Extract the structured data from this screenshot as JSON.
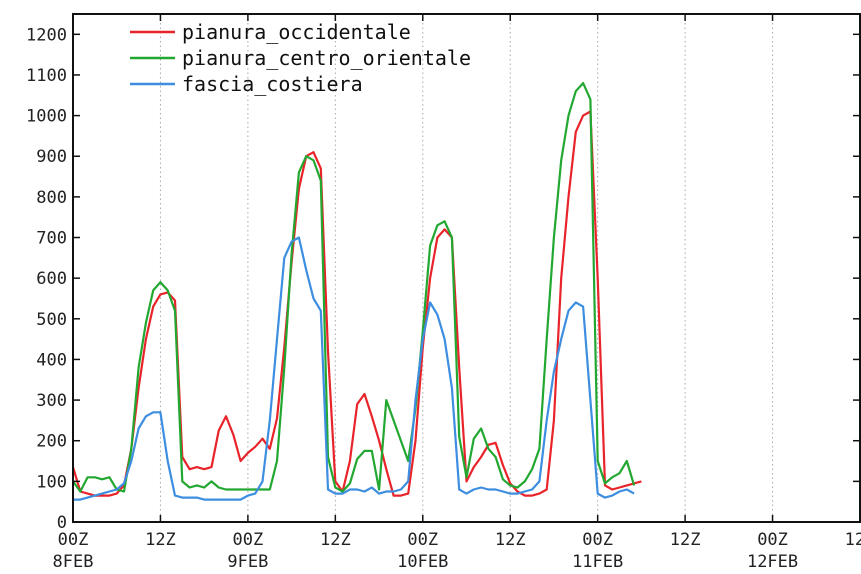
{
  "chart_data": {
    "type": "line",
    "title": "",
    "xlabel": "",
    "ylabel": "",
    "ylim": [
      0,
      1250
    ],
    "xlim": [
      0,
      108
    ],
    "x_unit": "hours from 00Z 8FEB",
    "grid": "vertical dotted lines at 12-hour intervals",
    "legend_position": "top-left",
    "yticks": [
      0,
      100,
      200,
      300,
      400,
      500,
      600,
      700,
      800,
      900,
      1000,
      1100,
      1200
    ],
    "xticks": [
      {
        "x": 0,
        "line1": "00Z",
        "line2": "8FEB"
      },
      {
        "x": 12,
        "line1": "12Z",
        "line2": ""
      },
      {
        "x": 24,
        "line1": "00Z",
        "line2": "9FEB"
      },
      {
        "x": 36,
        "line1": "12Z",
        "line2": ""
      },
      {
        "x": 48,
        "line1": "00Z",
        "line2": "10FEB"
      },
      {
        "x": 60,
        "line1": "12Z",
        "line2": ""
      },
      {
        "x": 72,
        "line1": "00Z",
        "line2": "11FEB"
      },
      {
        "x": 84,
        "line1": "12Z",
        "line2": ""
      },
      {
        "x": 96,
        "line1": "00Z",
        "line2": "12FEB"
      },
      {
        "x": 108,
        "line1": "12Z",
        "line2": ""
      }
    ],
    "series": [
      {
        "name": "pianura_occidentale",
        "color": "#e8242a",
        "points": [
          [
            0,
            135
          ],
          [
            1,
            75
          ],
          [
            2,
            70
          ],
          [
            3,
            65
          ],
          [
            4,
            65
          ],
          [
            5,
            65
          ],
          [
            6,
            70
          ],
          [
            7,
            90
          ],
          [
            8,
            180
          ],
          [
            9,
            330
          ],
          [
            10,
            450
          ],
          [
            11,
            530
          ],
          [
            12,
            560
          ],
          [
            13,
            565
          ],
          [
            14,
            545
          ],
          [
            15,
            160
          ],
          [
            16,
            130
          ],
          [
            17,
            135
          ],
          [
            18,
            130
          ],
          [
            19,
            135
          ],
          [
            20,
            225
          ],
          [
            21,
            260
          ],
          [
            22,
            215
          ],
          [
            23,
            150
          ],
          [
            24,
            170
          ],
          [
            25,
            185
          ],
          [
            26,
            205
          ],
          [
            27,
            180
          ],
          [
            28,
            255
          ],
          [
            29,
            430
          ],
          [
            30,
            640
          ],
          [
            31,
            820
          ],
          [
            32,
            900
          ],
          [
            33,
            910
          ],
          [
            34,
            870
          ],
          [
            35,
            420
          ],
          [
            36,
            100
          ],
          [
            37,
            75
          ],
          [
            38,
            150
          ],
          [
            39,
            290
          ],
          [
            40,
            315
          ],
          [
            41,
            260
          ],
          [
            42,
            200
          ],
          [
            43,
            130
          ],
          [
            44,
            65
          ],
          [
            45,
            65
          ],
          [
            46,
            70
          ],
          [
            47,
            200
          ],
          [
            48,
            430
          ],
          [
            49,
            600
          ],
          [
            50,
            700
          ],
          [
            51,
            720
          ],
          [
            52,
            700
          ],
          [
            53,
            380
          ],
          [
            54,
            100
          ],
          [
            55,
            135
          ],
          [
            56,
            160
          ],
          [
            57,
            190
          ],
          [
            58,
            195
          ],
          [
            59,
            140
          ],
          [
            60,
            95
          ],
          [
            61,
            75
          ],
          [
            62,
            65
          ],
          [
            63,
            65
          ],
          [
            64,
            70
          ],
          [
            65,
            80
          ],
          [
            66,
            250
          ],
          [
            67,
            600
          ],
          [
            68,
            800
          ],
          [
            69,
            960
          ],
          [
            70,
            1000
          ],
          [
            71,
            1010
          ],
          [
            72,
            600
          ],
          [
            73,
            90
          ],
          [
            74,
            80
          ],
          [
            75,
            85
          ],
          [
            76,
            90
          ],
          [
            77,
            95
          ],
          [
            78,
            100
          ]
        ]
      },
      {
        "name": "pianura_centro_orientale",
        "color": "#22a831",
        "points": [
          [
            0,
            100
          ],
          [
            1,
            75
          ],
          [
            2,
            110
          ],
          [
            3,
            110
          ],
          [
            4,
            105
          ],
          [
            5,
            110
          ],
          [
            6,
            80
          ],
          [
            7,
            75
          ],
          [
            8,
            180
          ],
          [
            9,
            380
          ],
          [
            10,
            490
          ],
          [
            11,
            570
          ],
          [
            12,
            590
          ],
          [
            13,
            570
          ],
          [
            14,
            520
          ],
          [
            15,
            100
          ],
          [
            16,
            85
          ],
          [
            17,
            90
          ],
          [
            18,
            85
          ],
          [
            19,
            100
          ],
          [
            20,
            85
          ],
          [
            21,
            80
          ],
          [
            22,
            80
          ],
          [
            23,
            80
          ],
          [
            24,
            80
          ],
          [
            25,
            80
          ],
          [
            26,
            80
          ],
          [
            27,
            80
          ],
          [
            28,
            150
          ],
          [
            29,
            380
          ],
          [
            30,
            660
          ],
          [
            31,
            860
          ],
          [
            32,
            900
          ],
          [
            33,
            890
          ],
          [
            34,
            840
          ],
          [
            35,
            160
          ],
          [
            36,
            85
          ],
          [
            37,
            75
          ],
          [
            38,
            95
          ],
          [
            39,
            155
          ],
          [
            40,
            175
          ],
          [
            41,
            175
          ],
          [
            42,
            80
          ],
          [
            43,
            300
          ],
          [
            44,
            250
          ],
          [
            45,
            200
          ],
          [
            46,
            150
          ],
          [
            47,
            280
          ],
          [
            48,
            470
          ],
          [
            49,
            680
          ],
          [
            50,
            730
          ],
          [
            51,
            740
          ],
          [
            52,
            700
          ],
          [
            53,
            210
          ],
          [
            54,
            110
          ],
          [
            55,
            205
          ],
          [
            56,
            230
          ],
          [
            57,
            180
          ],
          [
            58,
            160
          ],
          [
            59,
            105
          ],
          [
            60,
            90
          ],
          [
            61,
            85
          ],
          [
            62,
            100
          ],
          [
            63,
            130
          ],
          [
            64,
            180
          ],
          [
            65,
            450
          ],
          [
            66,
            700
          ],
          [
            67,
            890
          ],
          [
            68,
            1000
          ],
          [
            69,
            1060
          ],
          [
            70,
            1080
          ],
          [
            71,
            1040
          ],
          [
            72,
            150
          ],
          [
            73,
            95
          ],
          [
            74,
            110
          ],
          [
            75,
            120
          ],
          [
            76,
            150
          ],
          [
            77,
            90
          ]
        ]
      },
      {
        "name": "fascia_costiera",
        "color": "#3d8ee0",
        "points": [
          [
            0,
            55
          ],
          [
            1,
            55
          ],
          [
            2,
            60
          ],
          [
            3,
            65
          ],
          [
            4,
            70
          ],
          [
            5,
            75
          ],
          [
            6,
            80
          ],
          [
            7,
            95
          ],
          [
            8,
            150
          ],
          [
            9,
            230
          ],
          [
            10,
            260
          ],
          [
            11,
            270
          ],
          [
            12,
            270
          ],
          [
            13,
            150
          ],
          [
            14,
            65
          ],
          [
            15,
            60
          ],
          [
            16,
            60
          ],
          [
            17,
            60
          ],
          [
            18,
            55
          ],
          [
            19,
            55
          ],
          [
            20,
            55
          ],
          [
            21,
            55
          ],
          [
            22,
            55
          ],
          [
            23,
            55
          ],
          [
            24,
            65
          ],
          [
            25,
            70
          ],
          [
            26,
            100
          ],
          [
            27,
            250
          ],
          [
            28,
            450
          ],
          [
            29,
            650
          ],
          [
            30,
            690
          ],
          [
            31,
            700
          ],
          [
            32,
            620
          ],
          [
            33,
            550
          ],
          [
            34,
            520
          ],
          [
            35,
            80
          ],
          [
            36,
            70
          ],
          [
            37,
            70
          ],
          [
            38,
            80
          ],
          [
            39,
            80
          ],
          [
            40,
            75
          ],
          [
            41,
            85
          ],
          [
            42,
            70
          ],
          [
            43,
            75
          ],
          [
            44,
            75
          ],
          [
            45,
            80
          ],
          [
            46,
            100
          ],
          [
            47,
            300
          ],
          [
            48,
            450
          ],
          [
            49,
            540
          ],
          [
            50,
            510
          ],
          [
            51,
            450
          ],
          [
            52,
            330
          ],
          [
            53,
            80
          ],
          [
            54,
            70
          ],
          [
            55,
            80
          ],
          [
            56,
            85
          ],
          [
            57,
            80
          ],
          [
            58,
            80
          ],
          [
            59,
            75
          ],
          [
            60,
            70
          ],
          [
            61,
            70
          ],
          [
            62,
            75
          ],
          [
            63,
            80
          ],
          [
            64,
            100
          ],
          [
            65,
            250
          ],
          [
            66,
            370
          ],
          [
            67,
            450
          ],
          [
            68,
            520
          ],
          [
            69,
            540
          ],
          [
            70,
            530
          ],
          [
            71,
            300
          ],
          [
            72,
            70
          ],
          [
            73,
            60
          ],
          [
            74,
            65
          ],
          [
            75,
            75
          ],
          [
            76,
            80
          ],
          [
            77,
            70
          ]
        ]
      }
    ]
  }
}
